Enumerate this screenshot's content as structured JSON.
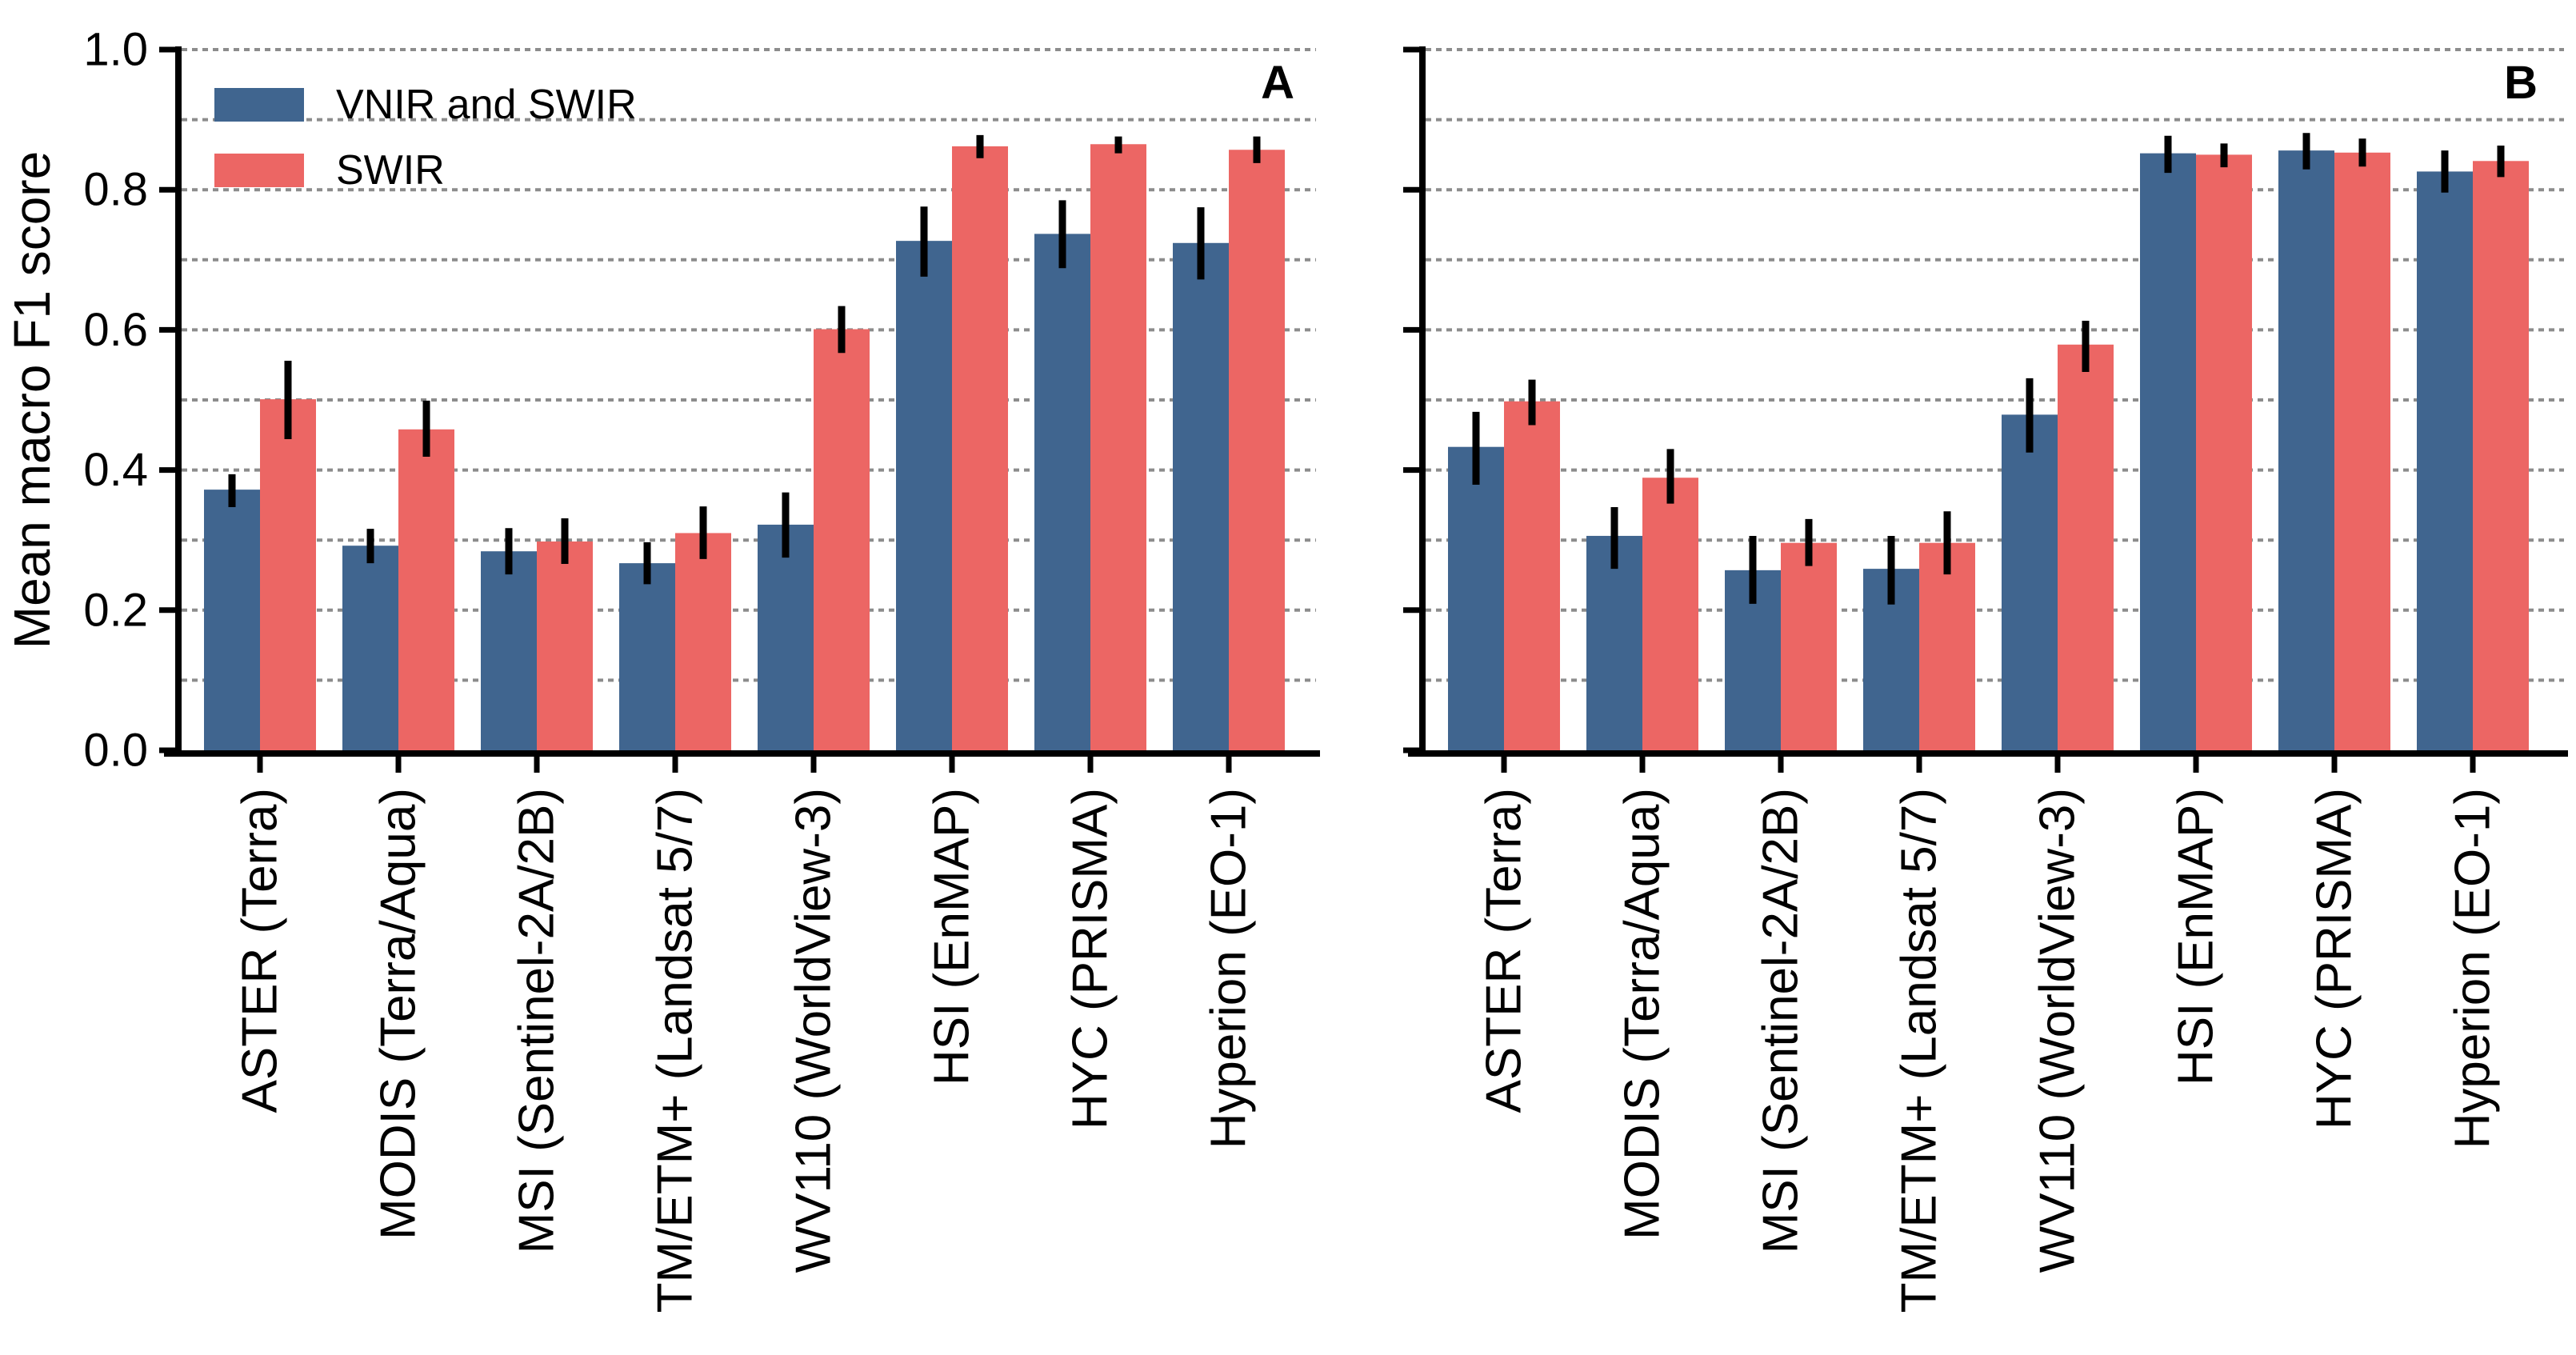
{
  "chart_data": {
    "type": "bar",
    "title": "",
    "ylabel": "Mean macro F1 score",
    "xlabel": "",
    "ylim": [
      0.0,
      1.0
    ],
    "y_tick_values": [
      0.0,
      0.2,
      0.4,
      0.6,
      0.8,
      1.0
    ],
    "y_tick_labels": [
      "0.0",
      "0.2",
      "0.4",
      "0.6",
      "0.8",
      "1.0"
    ],
    "grid": "horizontal dotted lines every 0.1",
    "legend_position": "upper left of panel A",
    "bar_layout": "grouped pairs, blue left / red right, error bars no caps",
    "colors": {
      "vnir_and_swir": "#40658F",
      "swir": "#EC6664",
      "errorbar": "#000000",
      "gridline": "#8C8C8C",
      "axis": "#000000"
    },
    "categories": [
      "ASTER (Terra)",
      "MODIS (Terra/Aqua)",
      "MSI (Sentinel-2A/2B)",
      "TM/ETM+ (Landsat 5/7)",
      "WV110 (WorldView-3)",
      "HSI (EnMAP)",
      "HYC (PRISMA)",
      "Hyperion (EO-1)"
    ],
    "panels": [
      {
        "label": "A",
        "y_axis_labeled": true,
        "series": [
          {
            "name": "VNIR and SWIR",
            "color": "#40658F",
            "values": [
              0.372,
              0.292,
              0.284,
              0.267,
              0.322,
              0.727,
              0.737,
              0.724
            ],
            "err_low": [
              0.347,
              0.267,
              0.251,
              0.237,
              0.275,
              0.676,
              0.688,
              0.672
            ],
            "err_high": [
              0.394,
              0.316,
              0.317,
              0.297,
              0.368,
              0.776,
              0.785,
              0.775
            ]
          },
          {
            "name": "SWIR",
            "color": "#EC6664",
            "values": [
              0.501,
              0.458,
              0.298,
              0.31,
              0.601,
              0.862,
              0.865,
              0.857
            ],
            "err_low": [
              0.444,
              0.419,
              0.266,
              0.273,
              0.567,
              0.845,
              0.852,
              0.838
            ],
            "err_high": [
              0.556,
              0.499,
              0.331,
              0.348,
              0.634,
              0.878,
              0.876,
              0.876
            ]
          }
        ]
      },
      {
        "label": "B",
        "y_axis_labeled": false,
        "series": [
          {
            "name": "VNIR and SWIR",
            "color": "#40658F",
            "values": [
              0.433,
              0.306,
              0.257,
              0.259,
              0.479,
              0.852,
              0.856,
              0.826
            ],
            "err_low": [
              0.379,
              0.259,
              0.209,
              0.208,
              0.425,
              0.824,
              0.829,
              0.796
            ],
            "err_high": [
              0.483,
              0.347,
              0.306,
              0.306,
              0.531,
              0.877,
              0.881,
              0.856
            ]
          },
          {
            "name": "SWIR",
            "color": "#EC6664",
            "values": [
              0.498,
              0.389,
              0.296,
              0.296,
              0.579,
              0.85,
              0.853,
              0.841
            ],
            "err_low": [
              0.464,
              0.352,
              0.263,
              0.251,
              0.54,
              0.832,
              0.833,
              0.818
            ],
            "err_high": [
              0.529,
              0.43,
              0.33,
              0.341,
              0.613,
              0.866,
              0.873,
              0.863
            ]
          }
        ]
      }
    ]
  }
}
